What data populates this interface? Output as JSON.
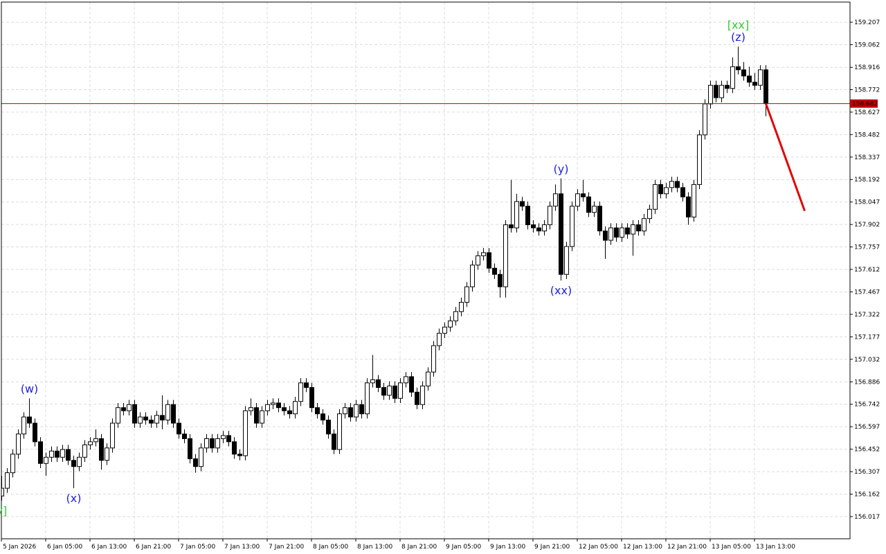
{
  "chart_data": {
    "type": "candlestick",
    "ylim": [
      155.874,
      159.337
    ],
    "yticks": [
      156.017,
      156.162,
      156.307,
      156.452,
      156.597,
      156.742,
      156.886,
      157.032,
      157.177,
      157.322,
      157.467,
      157.612,
      157.757,
      157.902,
      158.047,
      158.192,
      158.337,
      158.482,
      158.627,
      158.772,
      158.916,
      159.062,
      159.207
    ],
    "xticks": [
      {
        "value": 0,
        "label": "5 Jan 2026"
      },
      {
        "value": 8,
        "label": "6 Jan 05:00"
      },
      {
        "value": 16,
        "label": "6 Jan 13:00"
      },
      {
        "value": 24,
        "label": "6 Jan 21:00"
      },
      {
        "value": 32,
        "label": "7 Jan 05:00"
      },
      {
        "value": 40,
        "label": "7 Jan 13:00"
      },
      {
        "value": 48,
        "label": "7 Jan 21:00"
      },
      {
        "value": 56,
        "label": "8 Jan 05:00"
      },
      {
        "value": 64,
        "label": "8 Jan 13:00"
      },
      {
        "value": 72,
        "label": "8 Jan 21:00"
      },
      {
        "value": 80,
        "label": "9 Jan 05:00"
      },
      {
        "value": 88,
        "label": "9 Jan 13:00"
      },
      {
        "value": 96,
        "label": "9 Jan 21:00"
      },
      {
        "value": 104,
        "label": "12 Jan 05:00"
      },
      {
        "value": 112,
        "label": "12 Jan 13:00"
      },
      {
        "value": 120,
        "label": "12 Jan 21:00"
      },
      {
        "value": 128,
        "label": "13 Jan 05:00"
      },
      {
        "value": 136,
        "label": "13 Jan 13:00"
      }
    ],
    "grid": true,
    "bull_color": "#ffffff",
    "bear_color": "#000000",
    "ohlc": [
      [
        156.15,
        156.28,
        156.12,
        156.2
      ],
      [
        156.2,
        156.33,
        156.17,
        156.3
      ],
      [
        156.3,
        156.45,
        156.27,
        156.42
      ],
      [
        156.42,
        156.58,
        156.39,
        156.55
      ],
      [
        156.55,
        156.69,
        156.52,
        156.66
      ],
      [
        156.66,
        156.78,
        156.59,
        156.62
      ],
      [
        156.62,
        156.65,
        156.47,
        156.5
      ],
      [
        156.5,
        156.53,
        156.33,
        156.36
      ],
      [
        156.36,
        156.43,
        156.28,
        156.4
      ],
      [
        156.4,
        156.47,
        156.37,
        156.44
      ],
      [
        156.44,
        156.47,
        156.37,
        156.4
      ],
      [
        156.4,
        156.48,
        156.37,
        156.45
      ],
      [
        156.45,
        156.48,
        156.35,
        156.38
      ],
      [
        156.38,
        156.41,
        156.2,
        156.34
      ],
      [
        156.34,
        156.43,
        156.31,
        156.4
      ],
      [
        156.4,
        156.51,
        156.37,
        156.48
      ],
      [
        156.48,
        156.53,
        156.45,
        156.5
      ],
      [
        156.5,
        156.58,
        156.47,
        156.52
      ],
      [
        156.52,
        156.55,
        156.32,
        156.38
      ],
      [
        156.38,
        156.49,
        156.35,
        156.46
      ],
      [
        156.46,
        156.65,
        156.43,
        156.62
      ],
      [
        156.62,
        156.75,
        156.59,
        156.72
      ],
      [
        156.72,
        156.75,
        156.67,
        156.7
      ],
      [
        156.7,
        156.77,
        156.67,
        156.74
      ],
      [
        156.74,
        156.77,
        156.59,
        156.62
      ],
      [
        156.62,
        156.69,
        156.59,
        156.66
      ],
      [
        156.66,
        156.69,
        156.61,
        156.64
      ],
      [
        156.64,
        156.67,
        156.59,
        156.62
      ],
      [
        156.62,
        156.7,
        156.59,
        156.67
      ],
      [
        156.67,
        156.8,
        156.58,
        156.64
      ],
      [
        156.64,
        156.77,
        156.61,
        156.74
      ],
      [
        156.74,
        156.77,
        156.59,
        156.62
      ],
      [
        156.62,
        156.65,
        156.52,
        156.55
      ],
      [
        156.55,
        156.58,
        156.49,
        156.52
      ],
      [
        156.52,
        156.55,
        156.36,
        156.39
      ],
      [
        156.39,
        156.42,
        156.3,
        156.34
      ],
      [
        156.34,
        156.49,
        156.31,
        156.46
      ],
      [
        156.46,
        156.55,
        156.43,
        156.52
      ],
      [
        156.52,
        156.55,
        156.43,
        156.46
      ],
      [
        156.46,
        156.55,
        156.43,
        156.52
      ],
      [
        156.52,
        156.57,
        156.49,
        156.54
      ],
      [
        156.54,
        156.57,
        156.47,
        156.5
      ],
      [
        156.5,
        156.53,
        156.39,
        156.42
      ],
      [
        156.42,
        156.45,
        156.38,
        156.41
      ],
      [
        156.41,
        156.73,
        156.38,
        156.7
      ],
      [
        156.7,
        156.78,
        156.67,
        156.72
      ],
      [
        156.72,
        156.75,
        156.59,
        156.62
      ],
      [
        156.62,
        156.73,
        156.59,
        156.7
      ],
      [
        156.7,
        156.77,
        156.67,
        156.74
      ],
      [
        156.74,
        156.78,
        156.71,
        156.75
      ],
      [
        156.75,
        156.78,
        156.69,
        156.72
      ],
      [
        156.72,
        156.75,
        156.67,
        156.7
      ],
      [
        156.7,
        156.73,
        156.65,
        156.68
      ],
      [
        156.68,
        156.79,
        156.65,
        156.76
      ],
      [
        156.76,
        156.91,
        156.73,
        156.88
      ],
      [
        156.88,
        156.91,
        156.82,
        156.85
      ],
      [
        156.85,
        156.88,
        156.69,
        156.72
      ],
      [
        156.72,
        156.75,
        156.65,
        156.68
      ],
      [
        156.68,
        156.71,
        156.61,
        156.64
      ],
      [
        156.64,
        156.67,
        156.52,
        156.55
      ],
      [
        156.55,
        156.58,
        156.42,
        156.45
      ],
      [
        156.45,
        156.71,
        156.42,
        156.68
      ],
      [
        156.68,
        156.75,
        156.65,
        156.72
      ],
      [
        156.72,
        156.75,
        156.63,
        156.66
      ],
      [
        156.66,
        156.77,
        156.63,
        156.74
      ],
      [
        156.74,
        156.77,
        156.65,
        156.68
      ],
      [
        156.68,
        156.91,
        156.65,
        156.88
      ],
      [
        156.88,
        157.06,
        156.85,
        156.9
      ],
      [
        156.9,
        156.93,
        156.82,
        156.85
      ],
      [
        156.85,
        156.88,
        156.77,
        156.8
      ],
      [
        156.8,
        156.89,
        156.77,
        156.86
      ],
      [
        156.86,
        156.89,
        156.75,
        156.78
      ],
      [
        156.78,
        156.91,
        156.75,
        156.88
      ],
      [
        156.88,
        156.95,
        156.85,
        156.92
      ],
      [
        156.92,
        156.95,
        156.79,
        156.82
      ],
      [
        156.82,
        156.85,
        156.71,
        156.74
      ],
      [
        156.74,
        156.89,
        156.71,
        156.86
      ],
      [
        156.86,
        156.98,
        156.83,
        156.95
      ],
      [
        156.95,
        157.15,
        156.92,
        157.12
      ],
      [
        157.12,
        157.23,
        157.09,
        157.2
      ],
      [
        157.2,
        157.27,
        157.17,
        157.24
      ],
      [
        157.24,
        157.31,
        157.21,
        157.28
      ],
      [
        157.28,
        157.37,
        157.25,
        157.34
      ],
      [
        157.34,
        157.43,
        157.31,
        157.4
      ],
      [
        157.4,
        157.53,
        157.37,
        157.5
      ],
      [
        157.5,
        157.67,
        157.47,
        157.64
      ],
      [
        157.64,
        157.73,
        157.61,
        157.7
      ],
      [
        157.7,
        157.75,
        157.67,
        157.72
      ],
      [
        157.72,
        157.75,
        157.59,
        157.62
      ],
      [
        157.62,
        157.65,
        157.55,
        157.58
      ],
      [
        157.58,
        157.61,
        157.43,
        157.5
      ],
      [
        157.5,
        157.93,
        157.43,
        157.9
      ],
      [
        157.9,
        158.19,
        157.85,
        157.88
      ],
      [
        157.88,
        158.1,
        157.85,
        158.05
      ],
      [
        158.05,
        158.08,
        157.99,
        158.02
      ],
      [
        158.02,
        158.05,
        157.87,
        157.9
      ],
      [
        157.9,
        157.93,
        157.85,
        157.88
      ],
      [
        157.88,
        157.91,
        157.83,
        157.86
      ],
      [
        157.86,
        157.93,
        157.83,
        157.9
      ],
      [
        157.9,
        158.05,
        157.87,
        158.02
      ],
      [
        158.02,
        158.16,
        157.99,
        158.1
      ],
      [
        158.1,
        158.2,
        157.54,
        157.58
      ],
      [
        157.58,
        157.79,
        157.55,
        157.76
      ],
      [
        157.76,
        158.05,
        157.73,
        158.02
      ],
      [
        158.02,
        158.13,
        157.99,
        158.1
      ],
      [
        158.1,
        158.19,
        158.05,
        158.08
      ],
      [
        158.08,
        158.11,
        157.95,
        157.98
      ],
      [
        157.98,
        158.05,
        157.95,
        158.02
      ],
      [
        158.02,
        158.05,
        157.83,
        157.86
      ],
      [
        157.86,
        157.89,
        157.68,
        157.8
      ],
      [
        157.8,
        157.91,
        157.77,
        157.88
      ],
      [
        157.88,
        157.91,
        157.79,
        157.82
      ],
      [
        157.82,
        157.91,
        157.79,
        157.88
      ],
      [
        157.88,
        157.91,
        157.81,
        157.84
      ],
      [
        157.84,
        157.93,
        157.7,
        157.9
      ],
      [
        157.9,
        157.93,
        157.83,
        157.86
      ],
      [
        157.86,
        157.97,
        157.83,
        157.94
      ],
      [
        157.94,
        158.03,
        157.91,
        158.0
      ],
      [
        158.0,
        158.19,
        157.97,
        158.16
      ],
      [
        158.16,
        158.19,
        158.07,
        158.1
      ],
      [
        158.1,
        158.17,
        158.07,
        158.14
      ],
      [
        158.14,
        158.21,
        158.11,
        158.18
      ],
      [
        158.18,
        158.21,
        158.11,
        158.14
      ],
      [
        158.14,
        158.17,
        158.05,
        158.08
      ],
      [
        158.08,
        158.11,
        157.9,
        157.95
      ],
      [
        157.95,
        158.19,
        157.92,
        158.16
      ],
      [
        158.16,
        158.51,
        158.13,
        158.48
      ],
      [
        158.48,
        158.71,
        158.45,
        158.68
      ],
      [
        158.68,
        158.83,
        158.65,
        158.8
      ],
      [
        158.8,
        158.83,
        158.69,
        158.72
      ],
      [
        158.72,
        158.83,
        158.69,
        158.8
      ],
      [
        158.8,
        158.83,
        158.75,
        158.78
      ],
      [
        158.78,
        158.98,
        158.75,
        158.92
      ],
      [
        158.92,
        159.05,
        158.87,
        158.9
      ],
      [
        158.9,
        158.95,
        158.83,
        158.86
      ],
      [
        158.86,
        158.92,
        158.79,
        158.82
      ],
      [
        158.82,
        158.88,
        158.77,
        158.8
      ],
      [
        158.8,
        158.93,
        158.77,
        158.9
      ],
      [
        158.9,
        158.93,
        158.6,
        158.682
      ]
    ],
    "current_price": {
      "value": 158.682,
      "color": "#c00000"
    },
    "forecast": {
      "color": "#e00000",
      "x": [
        138,
        145
      ],
      "y": [
        158.682,
        157.99
      ]
    },
    "annotations": [
      {
        "text": "(w)",
        "candle": 5,
        "price": 156.78,
        "side": "above",
        "color": "#2020e0"
      },
      {
        "text": "(x)",
        "candle": 13,
        "price": 156.2,
        "side": "below",
        "color": "#2020e0"
      },
      {
        "text": "(y)",
        "candle": 101,
        "price": 158.2,
        "side": "above",
        "color": "#2020e0"
      },
      {
        "text": "(xx)",
        "candle": 101,
        "price": 157.54,
        "side": "below",
        "color": "#2020e0"
      },
      {
        "text": "(z)",
        "candle": 133,
        "price": 159.05,
        "side": "above",
        "color": "#2020e0"
      },
      {
        "text": "[xx]",
        "candle": 133,
        "price": 159.13,
        "side": "above",
        "color": "#33cc33"
      },
      {
        "text": "y]",
        "candle": 0,
        "price": 156.12,
        "side": "below",
        "color": "#33cc33"
      }
    ]
  }
}
